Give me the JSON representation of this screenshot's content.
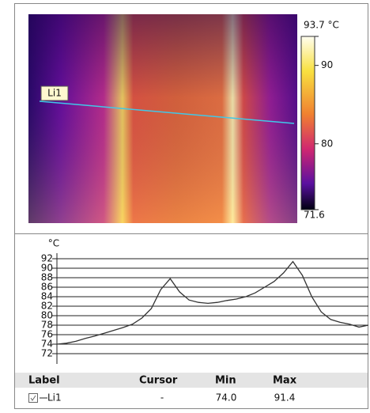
{
  "thermal_image": {
    "line_label": "Li1",
    "colorbar": {
      "lim": [
        71.6,
        93.7
      ],
      "ticks": [
        {
          "value": 93.7,
          "label": "93.7 °C"
        },
        90,
        80,
        71.6
      ]
    }
  },
  "chart_data": {
    "type": "line",
    "y_unit": "°C",
    "ylim": [
      72,
      92
    ],
    "yticks": [
      72,
      74,
      76,
      78,
      80,
      82,
      84,
      86,
      88,
      90,
      92
    ],
    "grid": true,
    "color": "#333333",
    "values": [
      74.0,
      74.2,
      74.6,
      75.2,
      75.7,
      76.3,
      76.9,
      77.5,
      78.2,
      79.5,
      81.5,
      85.5,
      87.8,
      85.0,
      83.3,
      82.8,
      82.6,
      82.8,
      83.2,
      83.5,
      84.0,
      84.8,
      86.0,
      87.2,
      89.0,
      91.4,
      88.5,
      84.0,
      80.8,
      79.2,
      78.6,
      78.2,
      77.6,
      78.0
    ]
  },
  "table": {
    "headers": [
      "Label",
      "Cursor",
      "Min",
      "Max"
    ],
    "rows": [
      [
        "Li1",
        "-",
        "74.0",
        "91.4"
      ]
    ]
  }
}
